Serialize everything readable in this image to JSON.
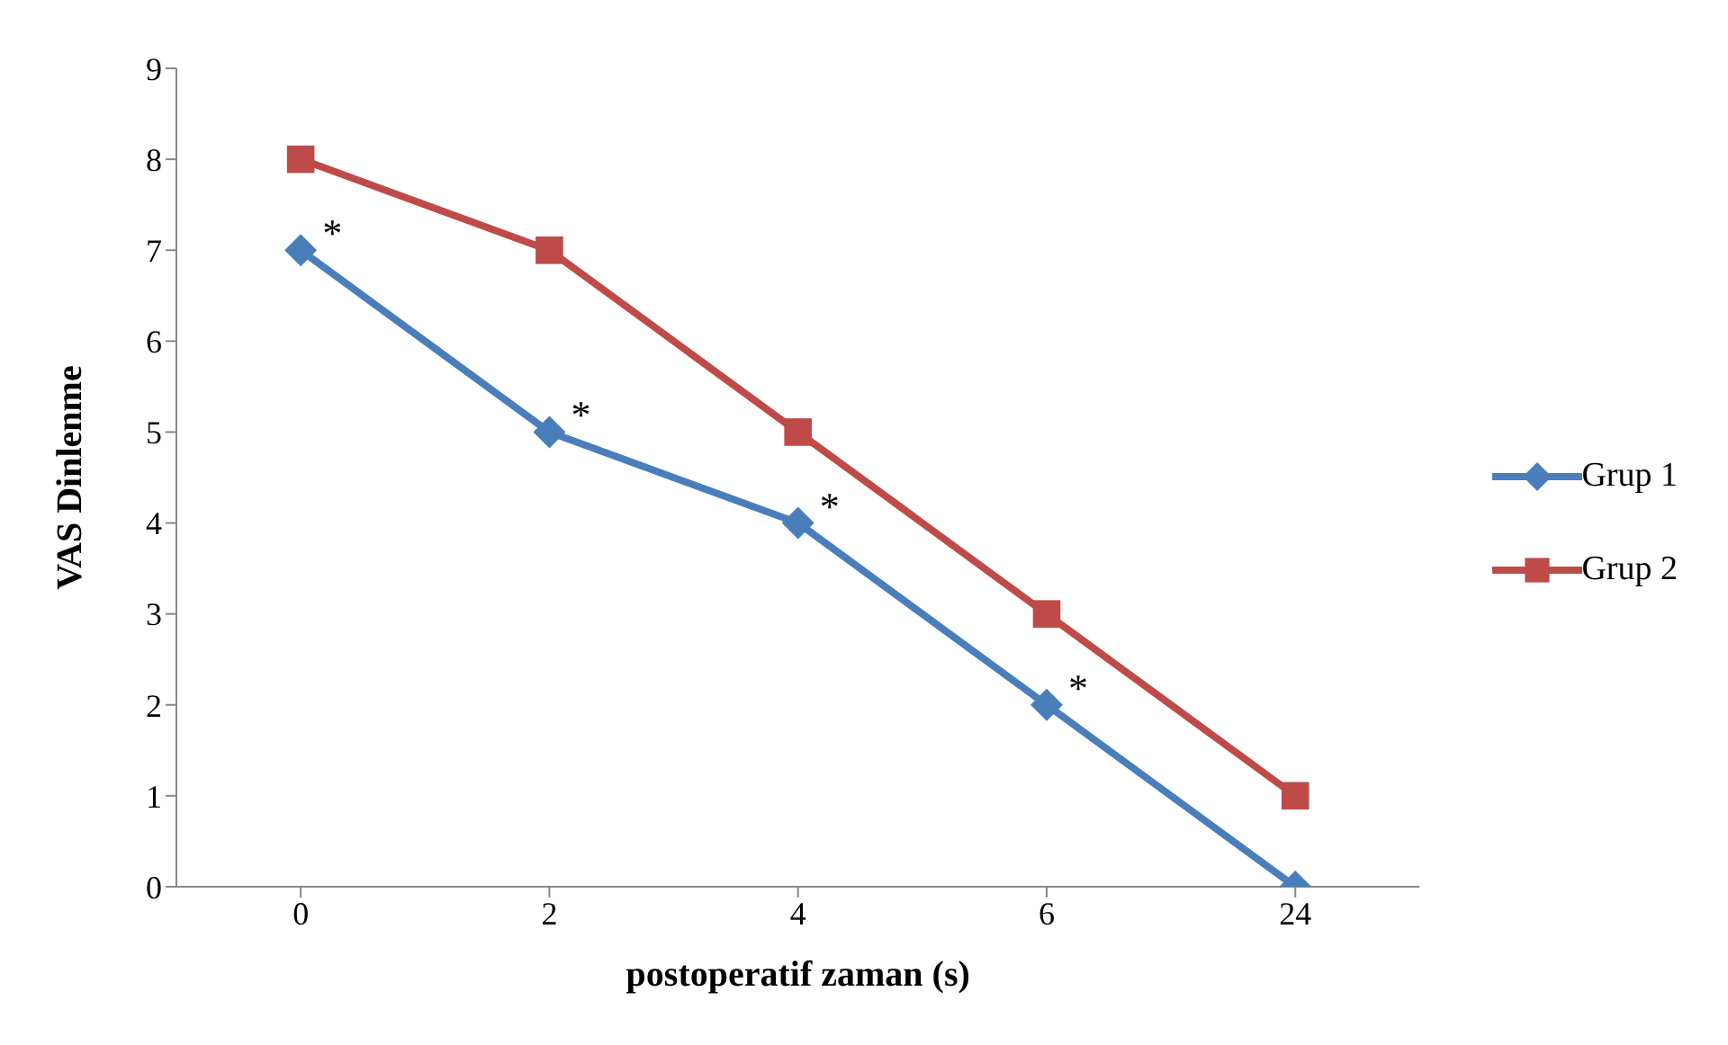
{
  "chart_data": {
    "type": "line",
    "xlabel": "postoperatif zaman (s)",
    "ylabel": "VAS Dinlenme",
    "categories": [
      "0",
      "2",
      "4",
      "6",
      "24"
    ],
    "series": [
      {
        "name": "Grup 1",
        "color": "#4a7ebb",
        "marker": "diamond",
        "values": [
          7,
          5,
          4,
          2,
          0
        ]
      },
      {
        "name": "Grup 2",
        "color": "#be4b48",
        "marker": "square",
        "values": [
          8,
          7,
          5,
          3,
          1
        ]
      }
    ],
    "ylim": [
      0,
      9
    ],
    "yticks": [
      0,
      1,
      2,
      3,
      4,
      5,
      6,
      7,
      8,
      9
    ],
    "grid": false,
    "legend": "right",
    "annotations": [
      {
        "text": "*",
        "x": "0",
        "y": 7
      },
      {
        "text": "*",
        "x": "2",
        "y": 5
      },
      {
        "text": "*",
        "x": "4",
        "y": 4
      },
      {
        "text": "*",
        "x": "6",
        "y": 2
      }
    ]
  }
}
